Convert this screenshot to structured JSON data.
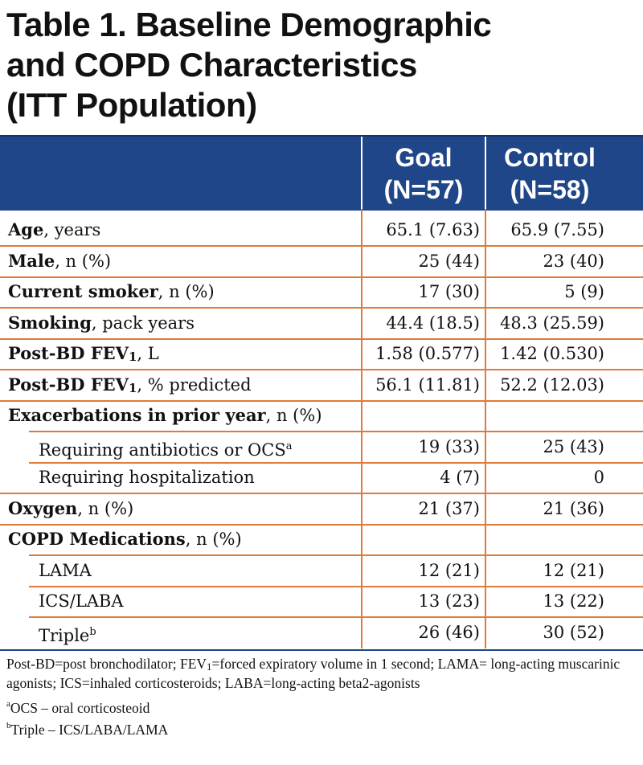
{
  "title": {
    "line1": "Table 1. Baseline Demographic",
    "line2": "and COPD Characteristics",
    "line3": "(ITT Population)"
  },
  "header": {
    "goal_line1": "Goal",
    "goal_line2": "(N=57)",
    "control_line1": "Control",
    "control_line2": "(N=58)"
  },
  "rows": [
    {
      "bold": "Age",
      "rest": ", years",
      "goal": "65.1 (7.63)",
      "control": "65.9 (7.55)"
    },
    {
      "bold": "Male",
      "rest": ", n (%)",
      "goal": "25 (44)",
      "control": "23 (40)"
    },
    {
      "bold": "Current smoker",
      "rest": ", n (%)",
      "goal": "17 (30)",
      "control": "5 (9)"
    },
    {
      "bold": "Smoking",
      "rest": ", pack years",
      "goal": "44.4 (18.5)",
      "control": "48.3 (25.59)"
    },
    {
      "bold": "Post-BD FEV",
      "sub": "1",
      "rest": ", L",
      "goal": "1.58 (0.577)",
      "control": "1.42 (0.530)"
    },
    {
      "bold": "Post-BD FEV",
      "sub": "1",
      "rest": ", % predicted",
      "goal": "56.1 (11.81)",
      "control": "52.2 (12.03)"
    },
    {
      "bold": "Exacerbations in prior year",
      "rest": ", n (%)",
      "goal": "",
      "control": ""
    },
    {
      "label": "Requiring antibiotics or OCS",
      "sup": "a",
      "goal": "19 (33)",
      "control": "25 (43)"
    },
    {
      "label": "Requiring hospitalization",
      "goal": "4 (7)",
      "control": "0"
    },
    {
      "bold": "Oxygen",
      "rest": ", n (%)",
      "goal": "21 (37)",
      "control": "21 (36)"
    },
    {
      "bold": "COPD Medications",
      "rest": ", n (%)",
      "goal": "",
      "control": ""
    },
    {
      "label": "LAMA",
      "goal": "12 (21)",
      "control": "12 (21)"
    },
    {
      "label": "ICS/LABA",
      "goal": "13 (23)",
      "control": "13 (22)"
    },
    {
      "label": "Triple",
      "sup": "b",
      "goal": "26 (46)",
      "control": "30 (52)"
    }
  ],
  "footnote": {
    "abbrev_part1": "Post-BD=post bronchodilator; FEV",
    "abbrev_sub": "1",
    "abbrev_part2": "=forced expiratory volume in 1 second; LAMA= long-acting muscarinic agonists; ICS=inhaled corticosteroids; LABA=long-acting beta2-agonists",
    "note_a_mark": "a",
    "note_a": "OCS – oral corticosteoid",
    "note_b_mark": "b",
    "note_b": "Triple – ICS/LABA/LAMA"
  }
}
